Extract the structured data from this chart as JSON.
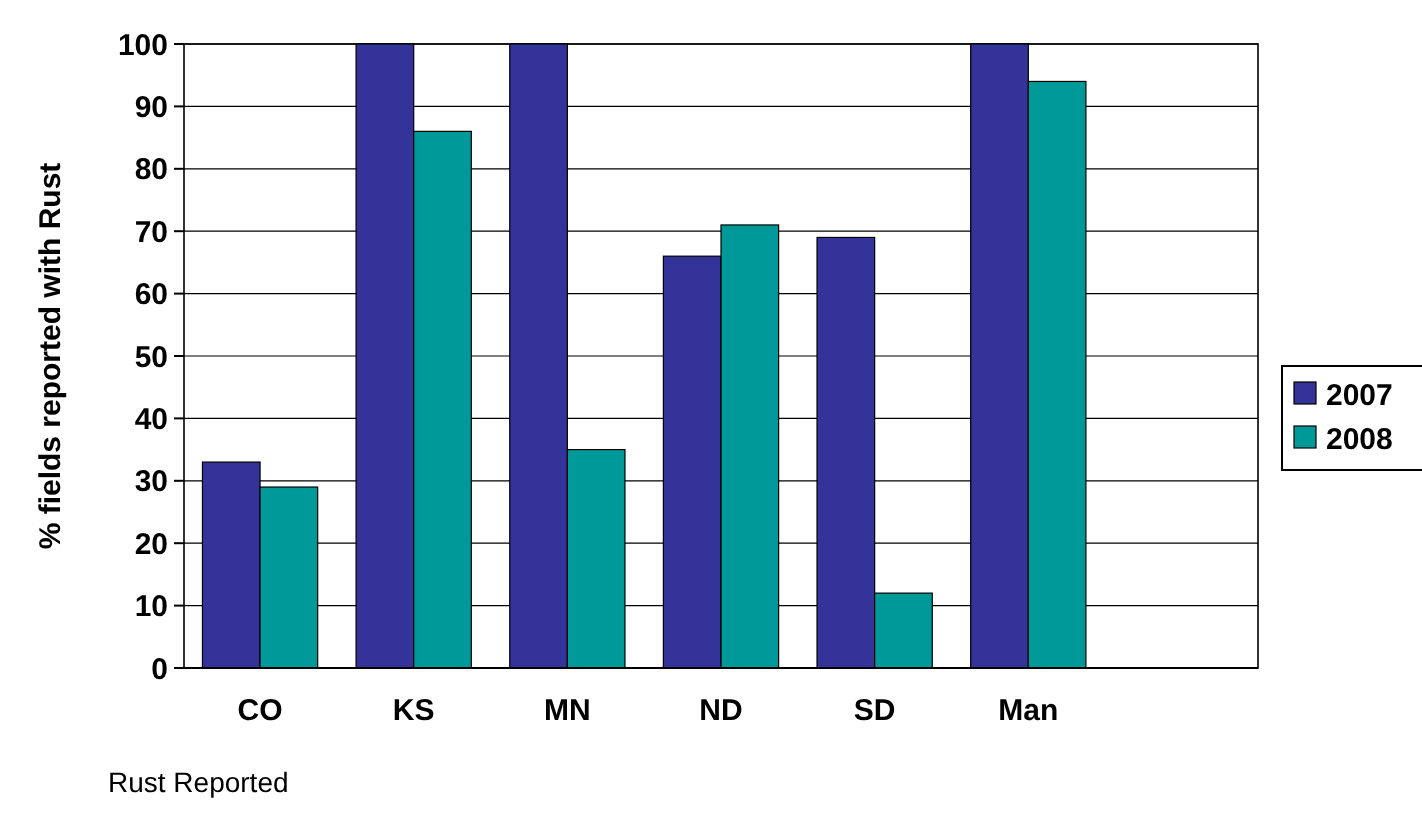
{
  "chart_data": {
    "type": "bar",
    "ylabel": "% fields reported with Rust",
    "annotations": [
      "Rust Reported"
    ],
    "categories": [
      "CO",
      "KS",
      "MN",
      "ND",
      "SD",
      "Man",
      null
    ],
    "series": [
      {
        "name": "2007",
        "color": "#333399",
        "values": [
          33,
          100,
          100,
          66,
          69,
          100,
          null
        ]
      },
      {
        "name": "2008",
        "color": "#009999",
        "values": [
          29,
          86,
          35,
          71,
          12,
          94,
          null
        ]
      }
    ],
    "ylim": [
      0,
      100
    ],
    "yticks": [
      0,
      10,
      20,
      30,
      40,
      50,
      60,
      70,
      80,
      90,
      100
    ],
    "grid": "y",
    "legend": "right"
  }
}
